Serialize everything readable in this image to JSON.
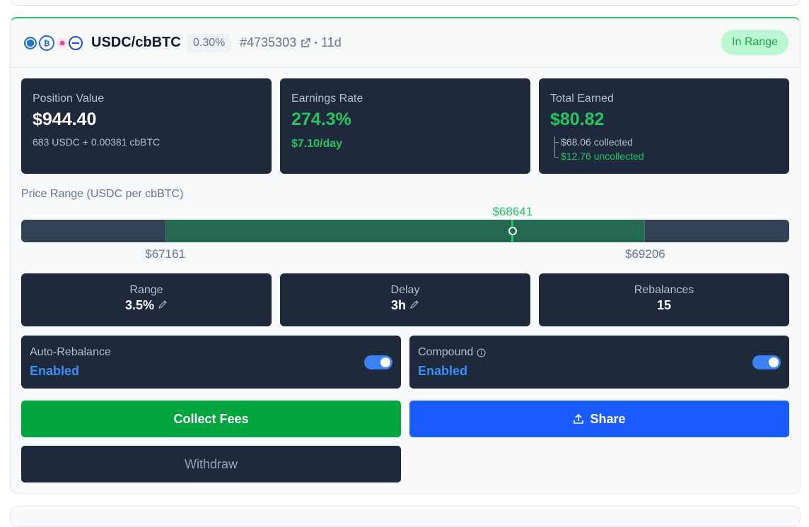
{
  "header": {
    "pair": "USDC/cbBTC",
    "fee_tier": "0.30%",
    "position_id": "#4735303",
    "age": "11d",
    "status": "In Range"
  },
  "stats": [
    {
      "label": "Position Value",
      "value": "$944.40",
      "detail": "683 USDC + 0.00381 cbBTC"
    },
    {
      "label": "Earnings Rate",
      "value": "274.3%",
      "detail": "$7.10/day"
    },
    {
      "label": "Total Earned",
      "value": "$80.82",
      "collected": "$68.06 collected",
      "uncollected": "$12.76 uncollected"
    }
  ],
  "price_range": {
    "label": "Price Range (USDC per cbBTC)",
    "current": "$68641",
    "lower": "$67161",
    "upper": "$69206"
  },
  "settings": [
    {
      "label": "Range",
      "value": "3.5%"
    },
    {
      "label": "Delay",
      "value": "3h"
    },
    {
      "label": "Rebalances",
      "value": "15"
    }
  ],
  "toggles": [
    {
      "label": "Auto-Rebalance",
      "state": "Enabled"
    },
    {
      "label": "Compound",
      "state": "Enabled"
    }
  ],
  "buttons": {
    "collect": "Collect Fees",
    "share": "Share",
    "withdraw": "Withdraw"
  }
}
